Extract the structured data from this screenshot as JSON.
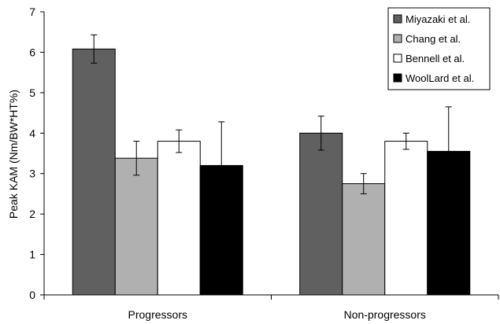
{
  "chart_data": {
    "type": "bar",
    "title": "",
    "xlabel": "",
    "ylabel": "Peak KAM (Nm/BW*HT%)",
    "ylim": [
      0,
      7
    ],
    "yticks": [
      0,
      1,
      2,
      3,
      4,
      5,
      6,
      7
    ],
    "categories": [
      "Progressors",
      "Non-progressors"
    ],
    "grid": false,
    "legend_position": "top-right",
    "series": [
      {
        "name": "Miyazaki et al.",
        "color": "#606060",
        "values": [
          6.08,
          4.0
        ],
        "error": [
          0.35,
          0.42
        ]
      },
      {
        "name": "Chang et al.",
        "color": "#b0b0b0",
        "values": [
          3.38,
          2.75
        ],
        "error": [
          0.42,
          0.25
        ]
      },
      {
        "name": "Bennell et al.",
        "color": "#ffffff",
        "values": [
          3.8,
          3.8
        ],
        "error": [
          0.28,
          0.2
        ]
      },
      {
        "name": "WoolLard et al.",
        "color": "#000000",
        "values": [
          3.2,
          3.55
        ],
        "error": [
          1.08,
          1.1
        ]
      }
    ]
  }
}
